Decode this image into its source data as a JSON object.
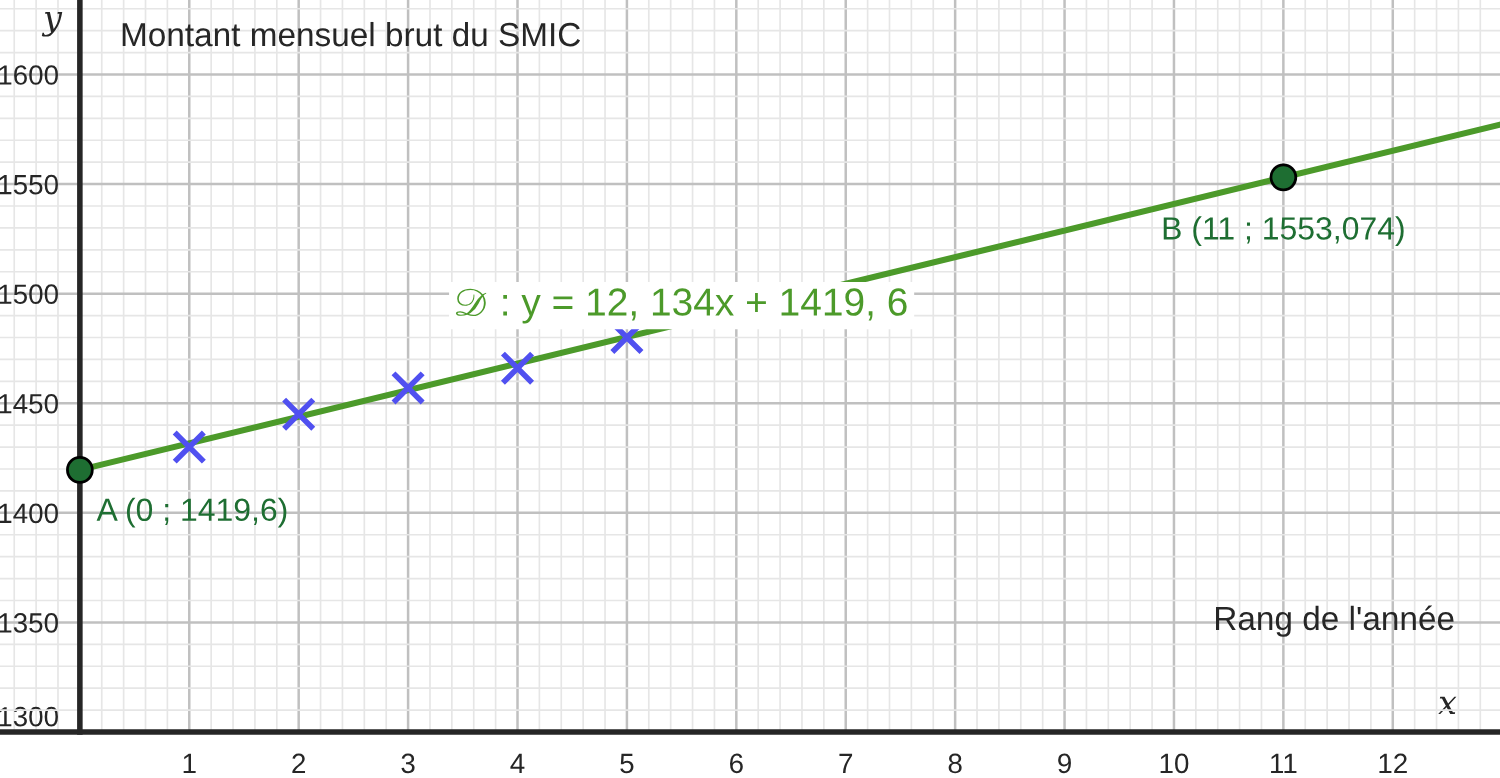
{
  "chart_data": {
    "type": "scatter",
    "title": "Montant mensuel brut du SMIC",
    "xlabel": "x",
    "ylabel": "y",
    "series": [
      {
        "type": "line",
        "color": "#4c9a2a",
        "x": [
          0,
          12.98
        ],
        "values": [
          1419.6,
          1577.1
        ],
        "marker": "none"
      },
      {
        "color": "#5050f0",
        "x": [
          1,
          2,
          3,
          4,
          5
        ],
        "values": [
          1430,
          1445,
          1457,
          1466,
          1480
        ],
        "marker": "cross"
      },
      {
        "type": "scatter",
        "color": "#1e6e32",
        "x": [
          0,
          11
        ],
        "values": [
          1419.6,
          1553.074
        ],
        "marker": "circle"
      }
    ],
    "annotations": [
      {
        "text": "A (0 ; 1419,6)",
        "x": 0,
        "y": 1419.6
      },
      {
        "text": "B (11 ; 1553,074)",
        "x": 11,
        "y": 1553.074
      },
      {
        "text": "𝒟 : y = 12, 134x + 1419, 6",
        "x": 5.5,
        "y": 1486.3
      },
      "Rang de l'année"
    ],
    "xlim": [
      -0.73,
      12.98
    ],
    "ylim": [
      1300,
      1634
    ],
    "xticks": [
      1,
      2,
      3,
      4,
      5,
      6,
      7,
      8,
      9,
      10,
      11,
      12
    ],
    "yticks": [
      1300,
      1350,
      1400,
      1450,
      1500,
      1550,
      1600
    ],
    "grid": true
  }
}
